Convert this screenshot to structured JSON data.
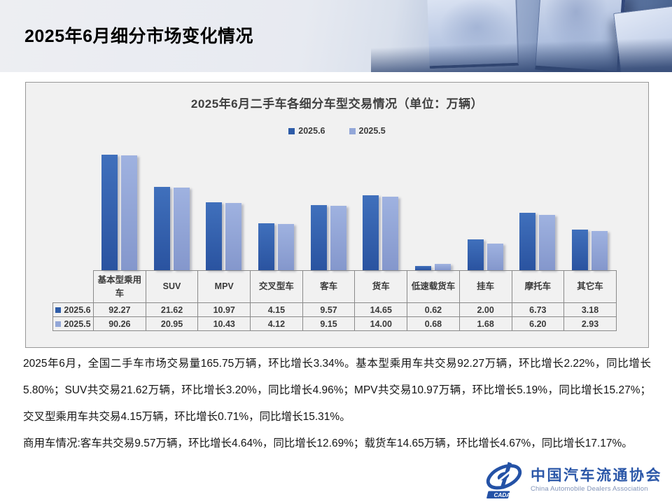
{
  "header": {
    "title": "2025年6月细分市场变化情况"
  },
  "chart_data": {
    "type": "bar",
    "title": "2025年6月二手车各细分车型交易情况（单位：万辆）",
    "unit": "万辆",
    "categories": [
      "基本型乘用车",
      "SUV",
      "MPV",
      "交叉型车",
      "客车",
      "货车",
      "低速载货车",
      "挂车",
      "摩托车",
      "其它车"
    ],
    "series": [
      {
        "name": "2025.6",
        "color": "#2E5CA8",
        "gradient": [
          "#4070BC",
          "#2A53A0"
        ],
        "values": [
          92.27,
          21.62,
          10.97,
          4.15,
          9.57,
          14.65,
          0.62,
          2.0,
          6.73,
          3.18
        ]
      },
      {
        "name": "2025.5",
        "color": "#93A7D8",
        "gradient": [
          "#9FB2E0",
          "#8497CC"
        ],
        "values": [
          90.26,
          20.95,
          10.43,
          4.12,
          9.15,
          14.0,
          0.68,
          1.68,
          6.2,
          2.93
        ]
      }
    ],
    "legend_position": "top",
    "grid": false,
    "value_axis": {
      "visible": false,
      "scale": "logarithmic"
    },
    "data_table_shown": true
  },
  "body": {
    "paragraph1": "2025年6月，全国二手车市场交易量165.75万辆，环比增长3.34%。基本型乘用车共交易92.27万辆，环比增长2.22%，同比增长5.80%；SUV共交易21.62万辆，环比增长3.20%，同比增长4.96%；MPV共交易10.97万辆，环比增长5.19%，同比增长15.27%；交叉型乘用车共交易4.15万辆，环比增长0.71%，同比增长15.31%。",
    "paragraph2": "商用车情况:客车共交易9.57万辆，环比增长4.64%，同比增长12.69%；载货车14.65万辆，环比增长4.67%，同比增长17.17%。"
  },
  "footer": {
    "org_name_cn": "中国汽车流通协会",
    "org_name_en": "China Automobile Dealers Association",
    "logo_badge": "CADA",
    "brand_color": "#2B57A8"
  }
}
